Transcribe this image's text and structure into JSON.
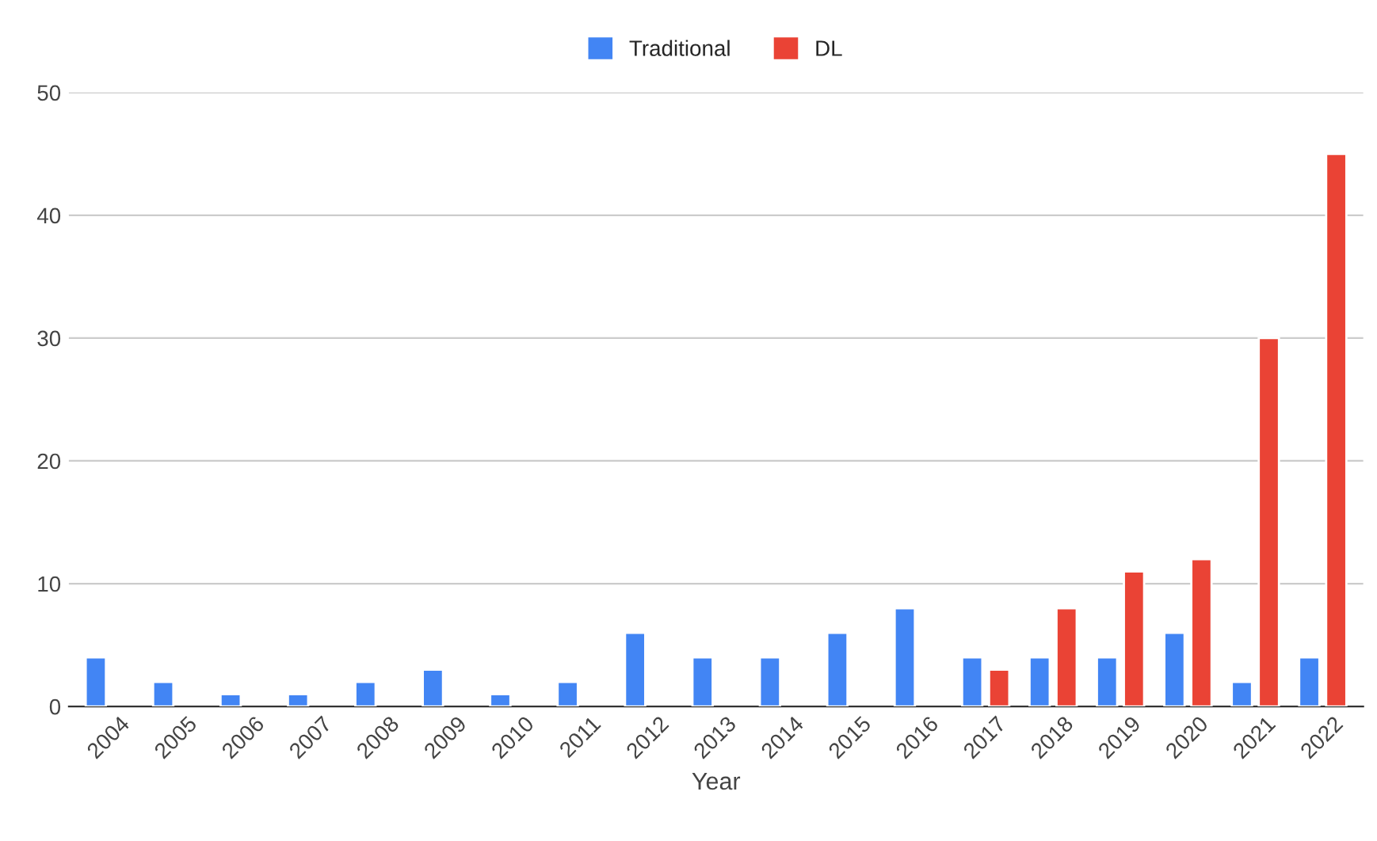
{
  "chart_data": {
    "type": "bar",
    "xlabel": "Year",
    "categories": [
      "2004",
      "2005",
      "2006",
      "2007",
      "2008",
      "2009",
      "2010",
      "2011",
      "2012",
      "2013",
      "2014",
      "2015",
      "2016",
      "2017",
      "2018",
      "2019",
      "2020",
      "2021",
      "2022"
    ],
    "series": [
      {
        "name": "Traditional",
        "color": "#4285f4",
        "values": [
          4,
          2,
          1,
          1,
          2,
          3,
          1,
          2,
          6,
          4,
          4,
          6,
          8,
          4,
          4,
          4,
          6,
          2,
          4
        ]
      },
      {
        "name": "DL",
        "color": "#ea4335",
        "values": [
          null,
          null,
          null,
          null,
          null,
          null,
          null,
          null,
          null,
          null,
          null,
          null,
          null,
          3,
          8,
          11,
          12,
          30,
          45
        ]
      }
    ],
    "ylim": [
      0,
      50
    ],
    "yticks": [
      0,
      10,
      20,
      30,
      40,
      50
    ],
    "grid": "y",
    "legend": "top"
  }
}
